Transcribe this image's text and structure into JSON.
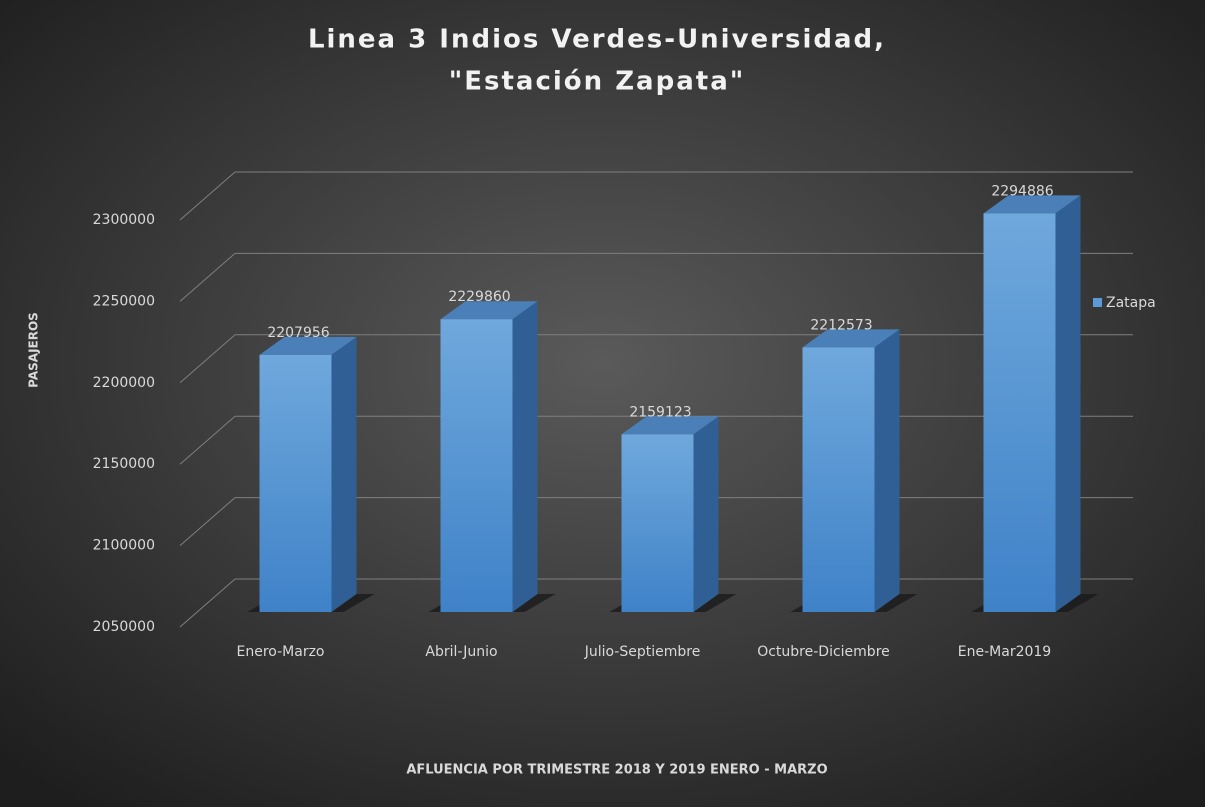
{
  "chart_data": {
    "type": "bar3d",
    "title": [
      "Linea 3 Indios Verdes-Universidad,",
      "\"Estación Zapata\""
    ],
    "y_label": "PASAJEROS",
    "x_label": "AFLUENCIA POR TRIMESTRE 2018 Y 2019 ENERO - MARZO",
    "categories": [
      "Enero-Marzo",
      "Abril-Junio",
      "Julio-Septiembre",
      "Octubre-Diciembre",
      "Ene-Mar2019"
    ],
    "series": [
      {
        "name": "Zatapa",
        "color": "#5b9bd5",
        "values": [
          2207956,
          2229860,
          2159123,
          2212573,
          2294886
        ]
      }
    ],
    "ylim": [
      2050000,
      2300000
    ],
    "yticks": [
      2050000,
      2100000,
      2150000,
      2200000,
      2250000,
      2300000
    ],
    "grid": true,
    "legend": "right"
  }
}
